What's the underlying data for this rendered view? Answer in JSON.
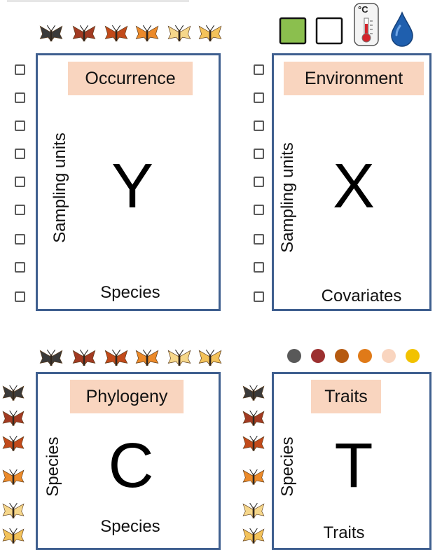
{
  "panels": {
    "occurrence": {
      "title": "Occurrence",
      "letter": "Y",
      "row_label": "Sampling units",
      "col_label": "Species"
    },
    "environment": {
      "title": "Environment",
      "letter": "X",
      "row_label": "Sampling units",
      "col_label": "Covariates"
    },
    "phylogeny": {
      "title": "Phylogeny",
      "letter": "C",
      "row_label": "Species",
      "col_label": "Species"
    },
    "traits": {
      "title": "Traits",
      "letter": "T",
      "row_label": "Species",
      "col_label": "Traits"
    }
  },
  "icons": {
    "thermometer_unit": "°C",
    "covariate_icons": [
      "green-square-icon",
      "white-square-icon",
      "thermometer-icon",
      "water-drop-icon"
    ],
    "moth_colors": [
      "#3a3a3a",
      "#a23a22",
      "#c24a1a",
      "#ec8a2a",
      "#f6d78a",
      "#f3c25a"
    ],
    "trait_dot_colors": [
      "#595959",
      "#9c3030",
      "#b65a10",
      "#e07a18",
      "#f9d5bf",
      "#f2c200"
    ]
  }
}
